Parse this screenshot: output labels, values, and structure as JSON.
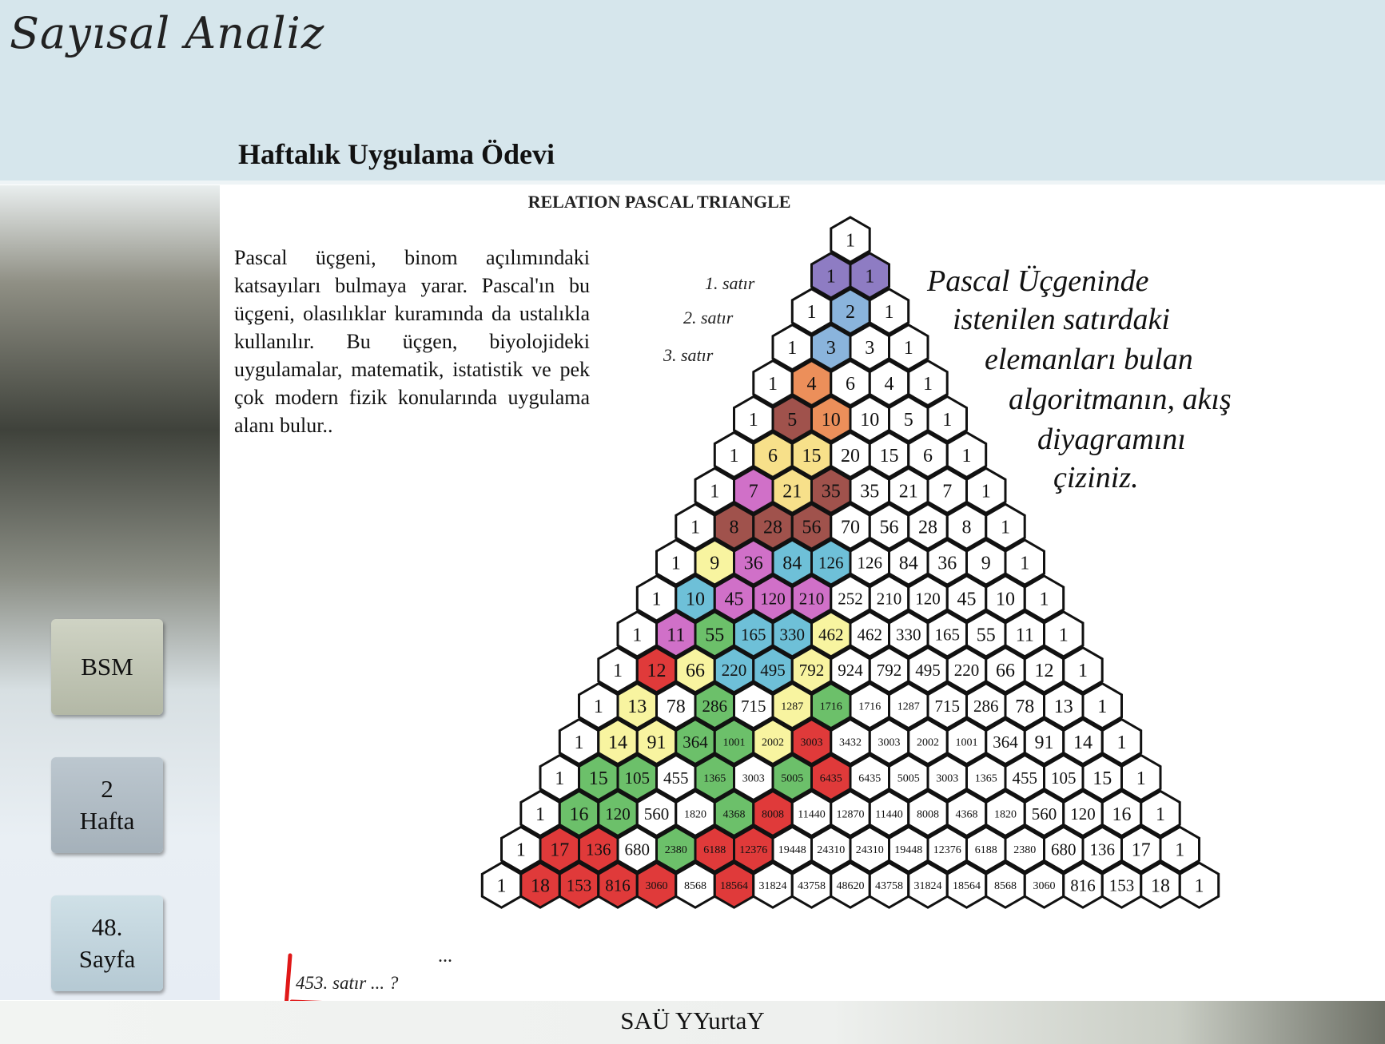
{
  "header": {
    "app_title": "Sayısal Analiz",
    "slide_title": "Haftalık Uygulama Ödevi"
  },
  "sidebar": {
    "buttons": [
      {
        "lines": [
          "BSM"
        ]
      },
      {
        "lines": [
          "2",
          "Hafta"
        ]
      },
      {
        "lines": [
          "48.",
          "Sayfa"
        ]
      }
    ]
  },
  "body": {
    "paragraph": "Pascal üçgeni, binom açılımındaki katsayıları bulmaya yarar. Pascal'ın bu üçgeni, olasılıklar kuramında da ustalıkla kullanılır. Bu üçgen, biyolojideki uygulamalar, matematik, istatistik ve pek çok modern fizik konularında uygulama alanı bulur.."
  },
  "figure": {
    "title": "RELATION PASCAL TRIANGLE",
    "row_labels": [
      "1. satır",
      "2. satır",
      "3. satır"
    ],
    "task_lines": [
      "Pascal Üçgeninde",
      "istenilen satırdaki",
      "elemanları bulan",
      "algoritmanın, akış",
      "diyagramını",
      "çiziniz."
    ],
    "ellipsis": "...",
    "question": "453. satır ... ?",
    "rows": [
      [
        1
      ],
      [
        1,
        1
      ],
      [
        1,
        2,
        1
      ],
      [
        1,
        3,
        3,
        1
      ],
      [
        1,
        4,
        6,
        4,
        1
      ],
      [
        1,
        5,
        10,
        10,
        5,
        1
      ],
      [
        1,
        6,
        15,
        20,
        15,
        6,
        1
      ],
      [
        1,
        7,
        21,
        35,
        35,
        21,
        7,
        1
      ],
      [
        1,
        8,
        28,
        56,
        70,
        56,
        28,
        8,
        1
      ],
      [
        1,
        9,
        36,
        84,
        126,
        126,
        84,
        36,
        9,
        1
      ],
      [
        1,
        10,
        45,
        120,
        210,
        252,
        210,
        120,
        45,
        10,
        1
      ],
      [
        1,
        11,
        55,
        165,
        330,
        462,
        462,
        330,
        165,
        55,
        11,
        1
      ],
      [
        1,
        12,
        66,
        220,
        495,
        792,
        924,
        792,
        495,
        220,
        66,
        12,
        1
      ],
      [
        1,
        13,
        78,
        286,
        715,
        1287,
        1716,
        1716,
        1287,
        715,
        286,
        78,
        13,
        1
      ],
      [
        1,
        14,
        91,
        364,
        1001,
        2002,
        3003,
        3432,
        3003,
        2002,
        1001,
        364,
        91,
        14,
        1
      ],
      [
        1,
        15,
        105,
        455,
        1365,
        3003,
        5005,
        6435,
        6435,
        5005,
        3003,
        1365,
        455,
        105,
        15,
        1
      ],
      [
        1,
        16,
        120,
        560,
        1820,
        4368,
        8008,
        11440,
        12870,
        11440,
        8008,
        4368,
        1820,
        560,
        120,
        16,
        1
      ],
      [
        1,
        17,
        136,
        680,
        2380,
        6188,
        12376,
        19448,
        24310,
        24310,
        19448,
        12376,
        6188,
        2380,
        680,
        136,
        17,
        1
      ],
      [
        1,
        18,
        153,
        816,
        3060,
        8568,
        18564,
        31824,
        43758,
        48620,
        43758,
        31824,
        18564,
        8568,
        3060,
        816,
        153,
        18,
        1
      ]
    ],
    "colors": {
      "white": "#ffffff",
      "purple": "#8e7cc3",
      "blue": "#8ab4dc",
      "orange": "#ec8f5a",
      "brown": "#a0524c",
      "yellow": "#f7e08a",
      "magenta": "#d070c8",
      "lightyellow": "#f8f4a0",
      "teal": "#6ec0d8",
      "green": "#6cc06a",
      "red": "#e03a3a",
      "pinkmagenta": "#d080d8"
    },
    "cell_colors": {
      "1-0": "purple",
      "1-1": "purple",
      "2-1": "blue",
      "3-1": "blue",
      "4-1": "orange",
      "5-1": "brown",
      "5-2": "orange",
      "6-1": "yellow",
      "6-2": "yellow",
      "7-1": "magenta",
      "7-2": "yellow",
      "7-3": "brown",
      "8-1": "brown",
      "8-2": "brown",
      "8-3": "brown",
      "9-1": "lightyellow",
      "9-2": "magenta",
      "9-3": "teal",
      "9-4": "teal",
      "10-1": "teal",
      "10-2": "magenta",
      "10-3": "magenta",
      "10-4": "magenta",
      "11-1": "magenta",
      "11-2": "green",
      "11-3": "teal",
      "11-4": "teal",
      "11-5": "lightyellow",
      "12-1": "red",
      "12-2": "lightyellow",
      "12-3": "teal",
      "12-4": "teal",
      "12-5": "lightyellow",
      "13-1": "lightyellow",
      "13-3": "green",
      "13-5": "lightyellow",
      "13-6": "green",
      "14-1": "lightyellow",
      "14-2": "lightyellow",
      "14-3": "green",
      "14-4": "green",
      "14-5": "lightyellow",
      "14-6": "red",
      "15-1": "green",
      "15-2": "green",
      "15-4": "green",
      "15-6": "green",
      "15-7": "red",
      "16-1": "green",
      "16-2": "green",
      "16-5": "green",
      "16-6": "red",
      "17-1": "red",
      "17-2": "red",
      "17-4": "green",
      "17-5": "red",
      "17-6": "red",
      "18-1": "red",
      "18-2": "red",
      "18-3": "red",
      "18-4": "red",
      "18-6": "red"
    }
  },
  "footer": {
    "text": "SAÜ YYurtaY"
  }
}
